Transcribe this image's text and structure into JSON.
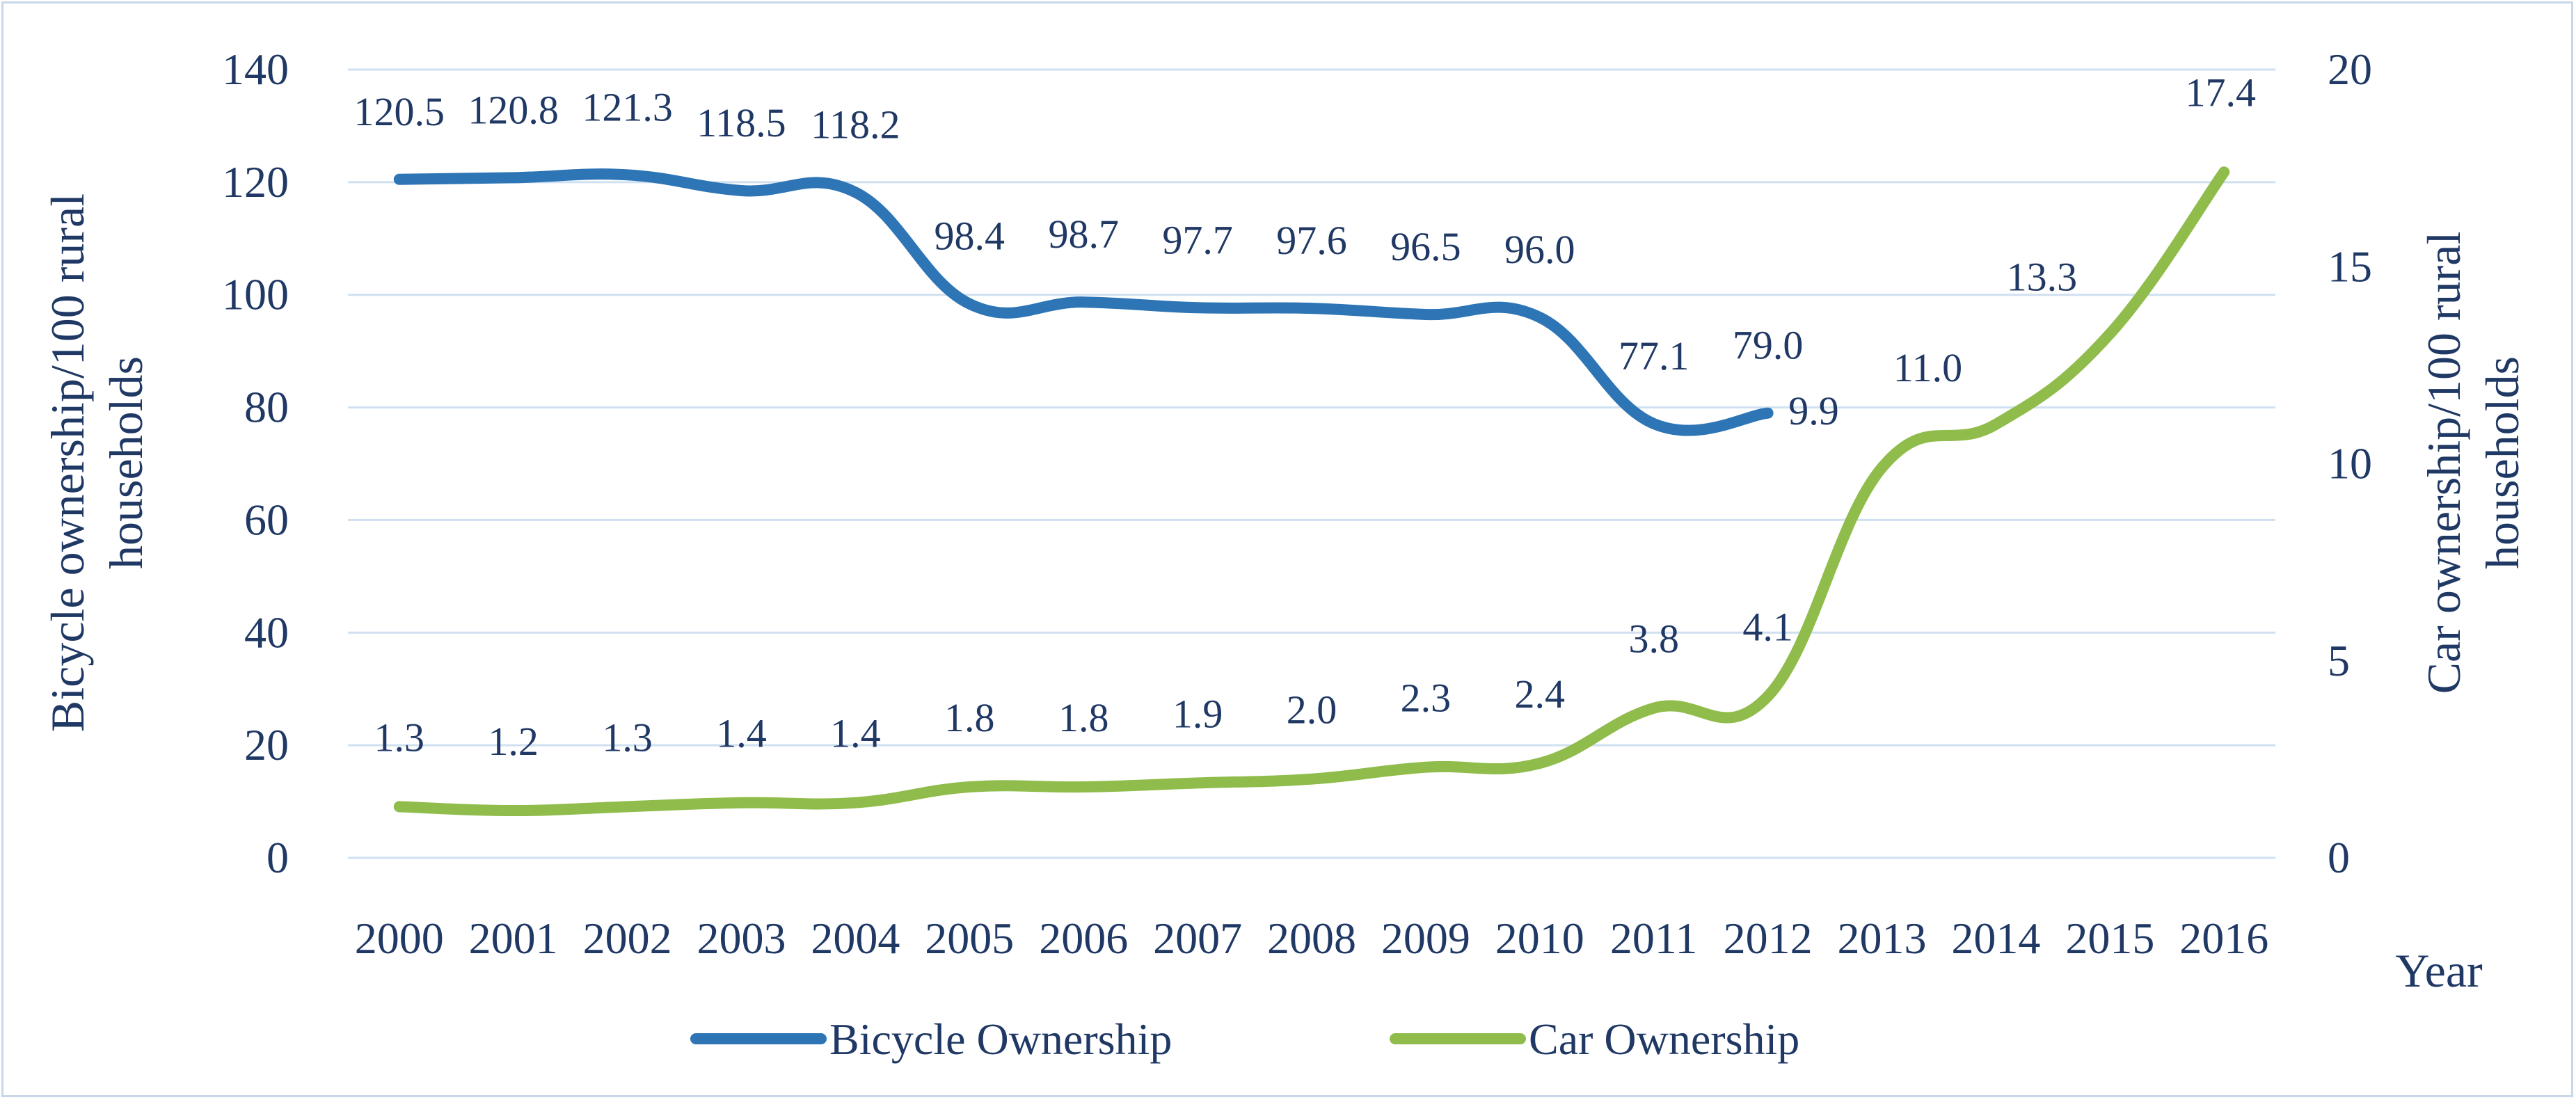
{
  "chart_data": {
    "type": "line",
    "title": "",
    "xlabel": "Year",
    "ylabel_left": "Bicycle ownership/100 rural households",
    "ylabel_left_lines": [
      "Bicycle ownership/100 rural",
      "households"
    ],
    "ylabel_right": "Car ownership/100 rural households",
    "ylabel_right_lines": [
      "Car ownership/100 rural",
      "households"
    ],
    "categories": [
      "2000",
      "2001",
      "2002",
      "2003",
      "2004",
      "2005",
      "2006",
      "2007",
      "2008",
      "2009",
      "2010",
      "2011",
      "2012",
      "2013",
      "2014",
      "2015",
      "2016"
    ],
    "y_left": {
      "min": 0,
      "max": 140,
      "step": 20,
      "ticks": [
        "0",
        "20",
        "40",
        "60",
        "80",
        "100",
        "120",
        "140"
      ]
    },
    "y_right": {
      "min": 0,
      "max": 20,
      "step": 5,
      "ticks": [
        "0",
        "5",
        "10",
        "15",
        "20"
      ]
    },
    "grid": true,
    "legend_position": "bottom",
    "series": [
      {
        "name": "Bicycle Ownership",
        "axis": "left",
        "color": "#2e75b6",
        "values": [
          120.5,
          120.8,
          121.3,
          118.5,
          118.2,
          98.4,
          98.7,
          97.7,
          97.6,
          96.5,
          96.0,
          77.1,
          79.0,
          null,
          null,
          null,
          null
        ],
        "labels": [
          "120.5",
          "120.8",
          "121.3",
          "118.5",
          "118.2",
          "98.4",
          "98.7",
          "97.7",
          "97.6",
          "96.5",
          "96.0",
          "77.1",
          "79.0",
          null,
          null,
          null,
          null
        ]
      },
      {
        "name": "Car Ownership",
        "axis": "right",
        "color": "#8fbc4a",
        "values": [
          1.3,
          1.2,
          1.3,
          1.4,
          1.4,
          1.8,
          1.8,
          1.9,
          2.0,
          2.3,
          2.4,
          3.8,
          4.1,
          9.9,
          11.0,
          13.3,
          17.4
        ],
        "labels": [
          "1.3",
          "1.2",
          "1.3",
          "1.4",
          "1.4",
          "1.8",
          "1.8",
          "1.9",
          "2.0",
          "2.3",
          "2.4",
          "3.8",
          "4.1",
          "9.9",
          "11.0",
          "13.3",
          "17.4"
        ]
      }
    ]
  }
}
